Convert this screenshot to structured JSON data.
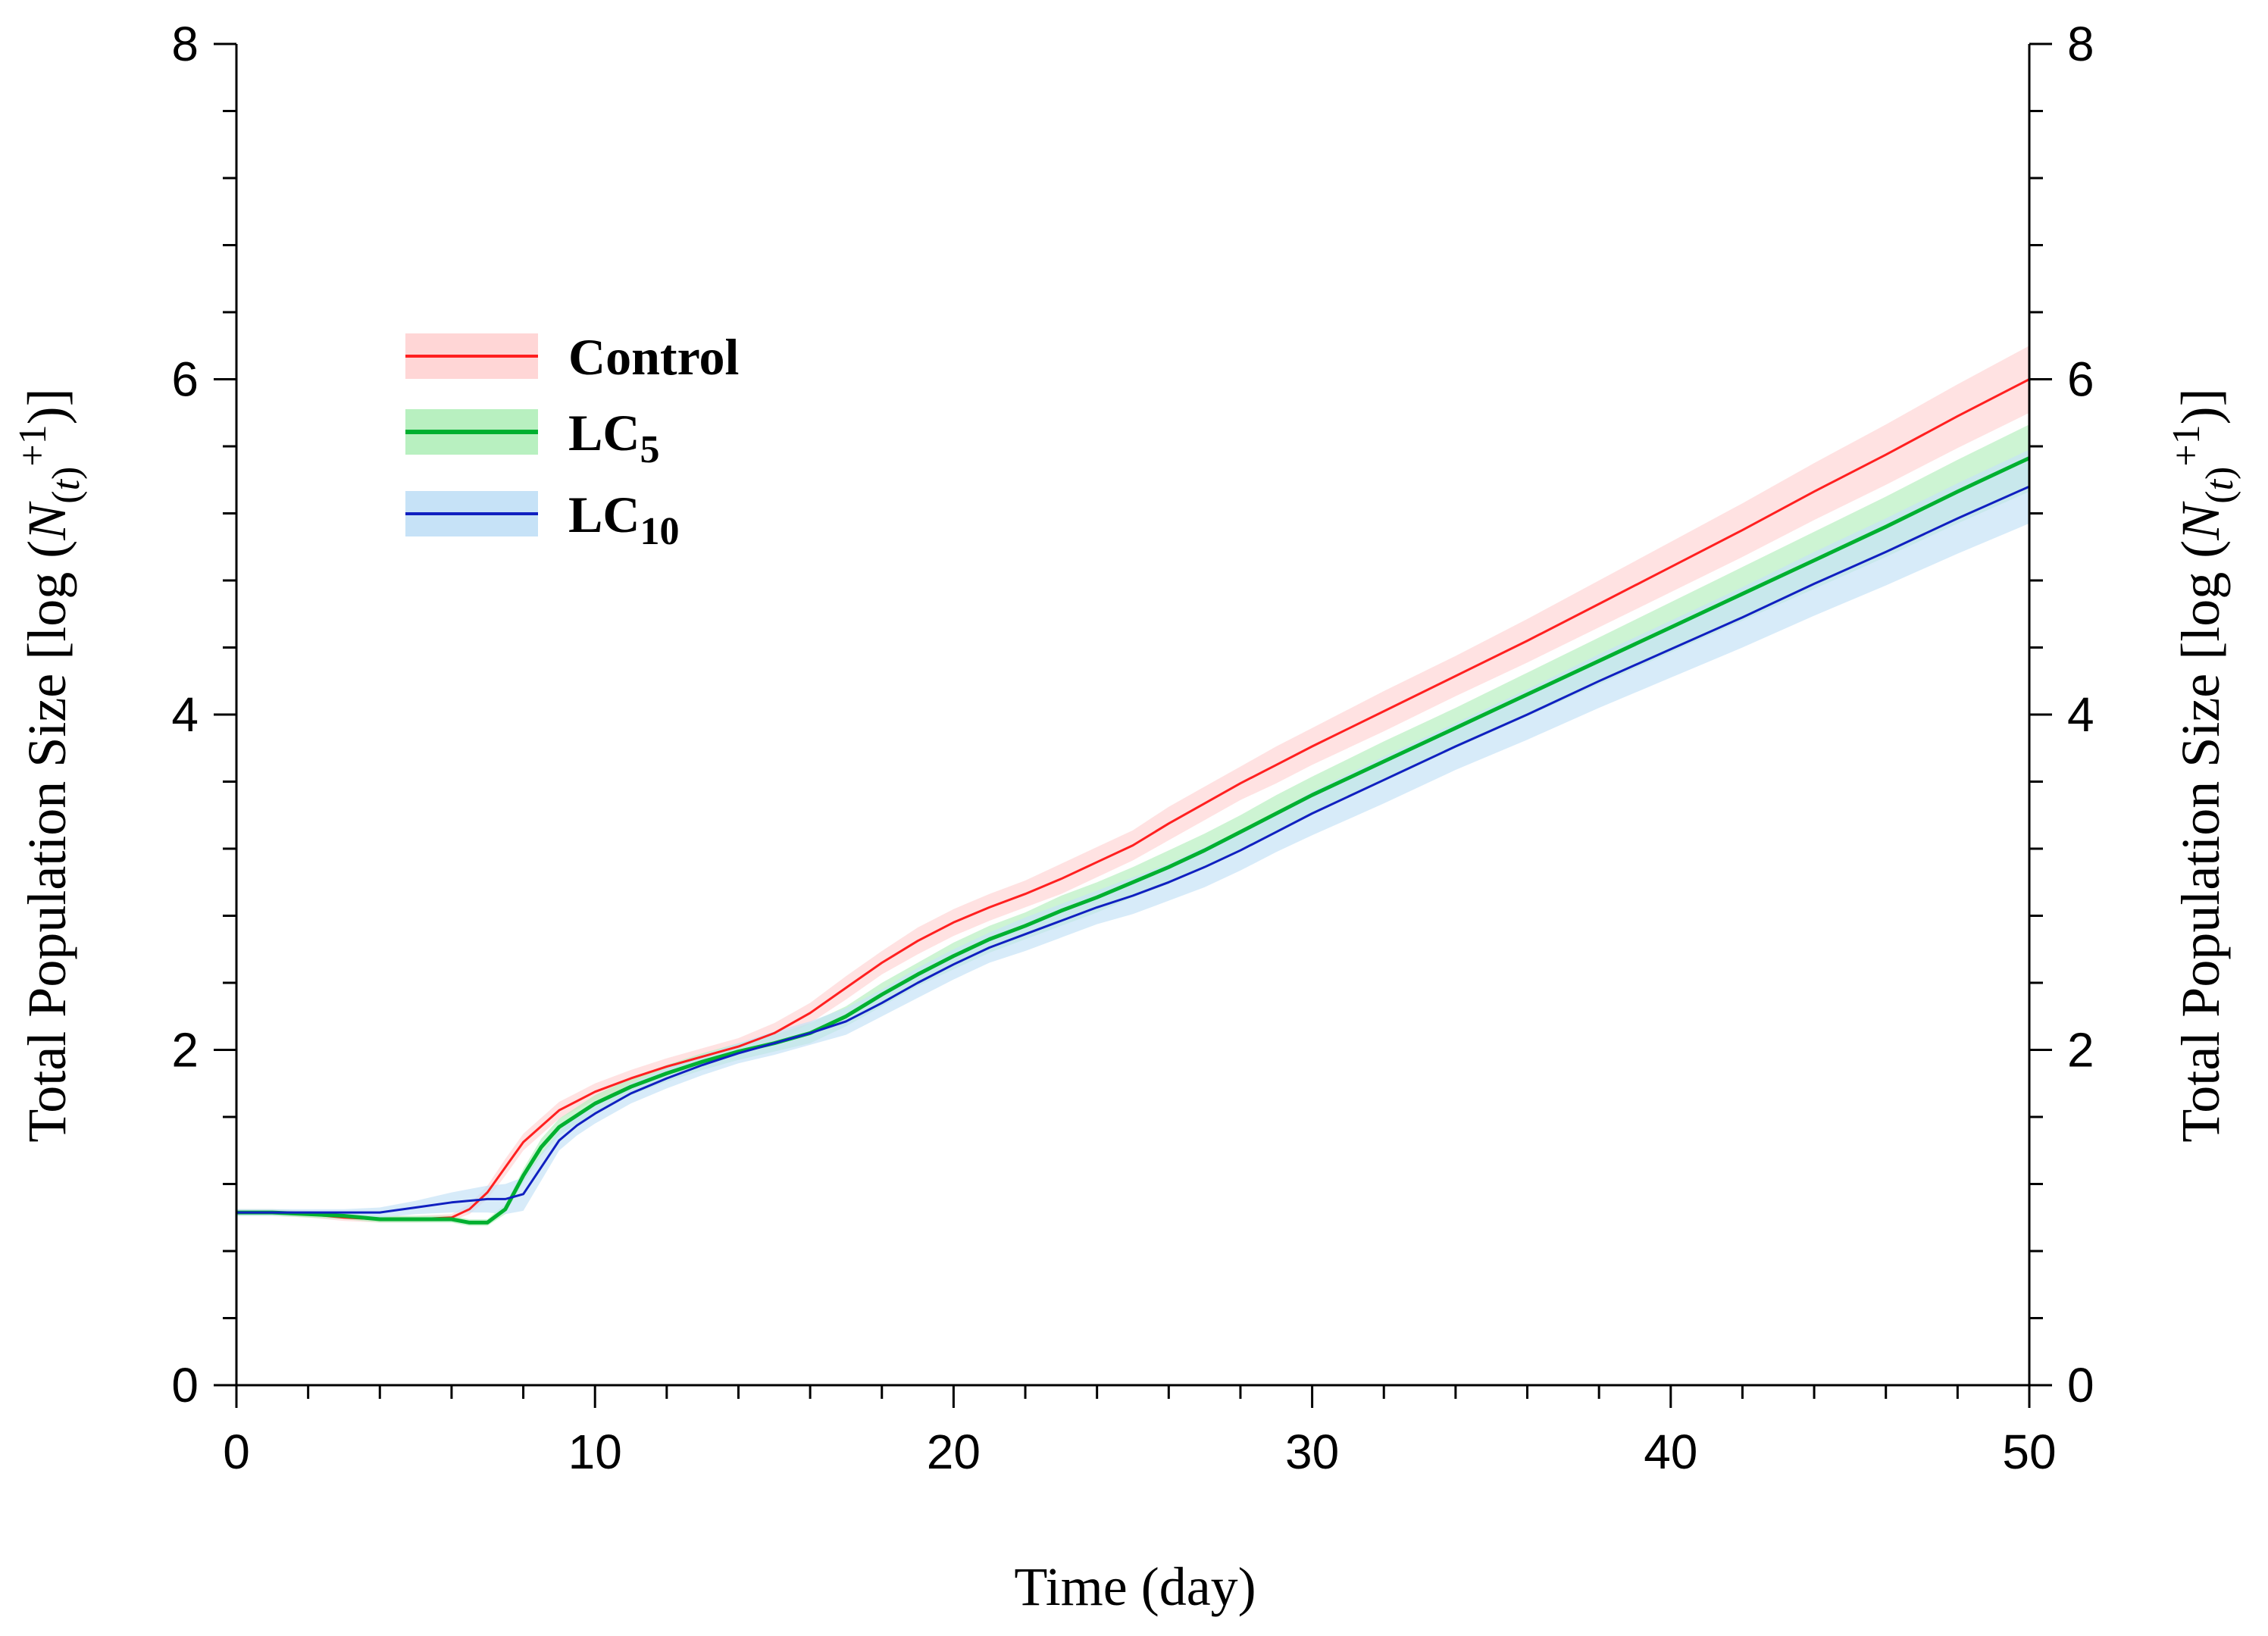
{
  "chart_data": {
    "type": "line",
    "title": "",
    "xlabel": "Time (day)",
    "ylabel_left": [
      "Total Population Size [log (",
      "N",
      "(",
      "t",
      ")",
      "+1",
      ")]"
    ],
    "ylabel_right": [
      "Total Population Size [log (",
      "N",
      "(",
      "t",
      ")",
      "+1",
      ")]"
    ],
    "xlim": [
      0,
      50
    ],
    "ylim": [
      0,
      8
    ],
    "x_ticks": [
      0,
      10,
      20,
      30,
      40,
      50
    ],
    "x_tick_labels": [
      "0",
      "10",
      "20",
      "30",
      "40",
      "50"
    ],
    "y_ticks": [
      0,
      2,
      4,
      6,
      8
    ],
    "y_tick_labels": [
      "0",
      "2",
      "4",
      "6",
      "8"
    ],
    "x_minor_step": 2,
    "y_minor_step": 0.4,
    "grid": false,
    "legend_position": "upper-left",
    "series": [
      {
        "name": "Control",
        "legend_main": "Control",
        "legend_sub": "",
        "color": "#ff2020",
        "band_color": "#ffd6d6",
        "line_width": 3,
        "x": [
          0,
          1,
          2,
          3,
          4,
          5,
          6,
          6.5,
          7,
          7.5,
          8,
          9,
          10,
          11,
          12,
          13,
          14,
          15,
          16,
          17,
          18,
          19,
          20,
          21,
          22,
          23,
          24,
          25,
          26,
          27,
          28,
          29,
          30,
          32,
          34,
          36,
          38,
          40,
          42,
          44,
          46,
          48,
          50
        ],
        "y": [
          1.03,
          1.03,
          1.02,
          1.0,
          0.99,
          0.99,
          1.0,
          1.05,
          1.15,
          1.3,
          1.45,
          1.64,
          1.75,
          1.83,
          1.9,
          1.96,
          2.02,
          2.1,
          2.22,
          2.37,
          2.52,
          2.65,
          2.76,
          2.85,
          2.93,
          3.02,
          3.12,
          3.22,
          3.35,
          3.47,
          3.59,
          3.7,
          3.81,
          4.02,
          4.23,
          4.44,
          4.66,
          4.88,
          5.1,
          5.33,
          5.55,
          5.78,
          6.0
        ],
        "band": [
          0.02,
          0.02,
          0.02,
          0.02,
          0.02,
          0.02,
          0.02,
          0.03,
          0.04,
          0.05,
          0.05,
          0.05,
          0.05,
          0.05,
          0.05,
          0.05,
          0.05,
          0.06,
          0.06,
          0.07,
          0.07,
          0.08,
          0.08,
          0.08,
          0.08,
          0.09,
          0.09,
          0.09,
          0.1,
          0.1,
          0.1,
          0.11,
          0.11,
          0.12,
          0.12,
          0.13,
          0.14,
          0.15,
          0.16,
          0.17,
          0.18,
          0.19,
          0.2
        ]
      },
      {
        "name": "LC5",
        "legend_main": "LC",
        "legend_sub": "5",
        "color": "#00b030",
        "band_color": "#b8f0c0",
        "line_width": 5,
        "x": [
          0,
          1,
          2,
          3,
          4,
          5,
          6,
          6.5,
          7,
          7.5,
          8,
          8.5,
          9,
          10,
          11,
          12,
          13,
          14,
          15,
          16,
          17,
          18,
          19,
          20,
          21,
          22,
          23,
          24,
          25,
          26,
          27,
          28,
          29,
          30,
          32,
          34,
          36,
          38,
          40,
          42,
          44,
          46,
          48,
          50
        ],
        "y": [
          1.03,
          1.03,
          1.02,
          1.01,
          0.99,
          0.99,
          0.99,
          0.97,
          0.97,
          1.05,
          1.25,
          1.42,
          1.54,
          1.68,
          1.78,
          1.86,
          1.93,
          1.99,
          2.04,
          2.1,
          2.2,
          2.33,
          2.45,
          2.56,
          2.66,
          2.74,
          2.83,
          2.91,
          3.0,
          3.09,
          3.19,
          3.3,
          3.41,
          3.52,
          3.72,
          3.92,
          4.12,
          4.32,
          4.52,
          4.72,
          4.92,
          5.12,
          5.33,
          5.53
        ],
        "band": [
          0.02,
          0.02,
          0.02,
          0.02,
          0.02,
          0.02,
          0.02,
          0.02,
          0.02,
          0.03,
          0.04,
          0.05,
          0.05,
          0.05,
          0.05,
          0.05,
          0.05,
          0.05,
          0.05,
          0.06,
          0.06,
          0.07,
          0.07,
          0.08,
          0.08,
          0.08,
          0.09,
          0.09,
          0.09,
          0.1,
          0.1,
          0.1,
          0.11,
          0.11,
          0.12,
          0.12,
          0.13,
          0.14,
          0.15,
          0.16,
          0.17,
          0.18,
          0.19,
          0.2
        ]
      },
      {
        "name": "LC10",
        "legend_main": "LC",
        "legend_sub": "10",
        "color": "#1020c0",
        "band_color": "#c6e2f7",
        "line_width": 3,
        "x": [
          0,
          1,
          2,
          3,
          4,
          5,
          6,
          7,
          7.5,
          8,
          8.5,
          9,
          9.5,
          10,
          11,
          12,
          13,
          14,
          15,
          16,
          17,
          18,
          19,
          20,
          21,
          22,
          23,
          24,
          25,
          26,
          27,
          28,
          29,
          30,
          32,
          34,
          36,
          38,
          40,
          42,
          44,
          46,
          48,
          50
        ],
        "y": [
          1.03,
          1.03,
          1.03,
          1.03,
          1.03,
          1.06,
          1.09,
          1.11,
          1.11,
          1.14,
          1.3,
          1.46,
          1.55,
          1.62,
          1.74,
          1.83,
          1.91,
          1.98,
          2.04,
          2.1,
          2.17,
          2.28,
          2.4,
          2.51,
          2.61,
          2.69,
          2.77,
          2.85,
          2.92,
          3.0,
          3.09,
          3.19,
          3.3,
          3.41,
          3.61,
          3.81,
          4.0,
          4.2,
          4.39,
          4.58,
          4.78,
          4.97,
          5.17,
          5.36
        ],
        "band": [
          0.02,
          0.02,
          0.02,
          0.02,
          0.03,
          0.04,
          0.06,
          0.08,
          0.09,
          0.1,
          0.08,
          0.06,
          0.06,
          0.06,
          0.06,
          0.06,
          0.06,
          0.06,
          0.07,
          0.07,
          0.08,
          0.08,
          0.09,
          0.09,
          0.09,
          0.1,
          0.1,
          0.1,
          0.11,
          0.11,
          0.12,
          0.12,
          0.12,
          0.13,
          0.14,
          0.14,
          0.15,
          0.16,
          0.17,
          0.18,
          0.19,
          0.2,
          0.21,
          0.22
        ]
      }
    ]
  }
}
